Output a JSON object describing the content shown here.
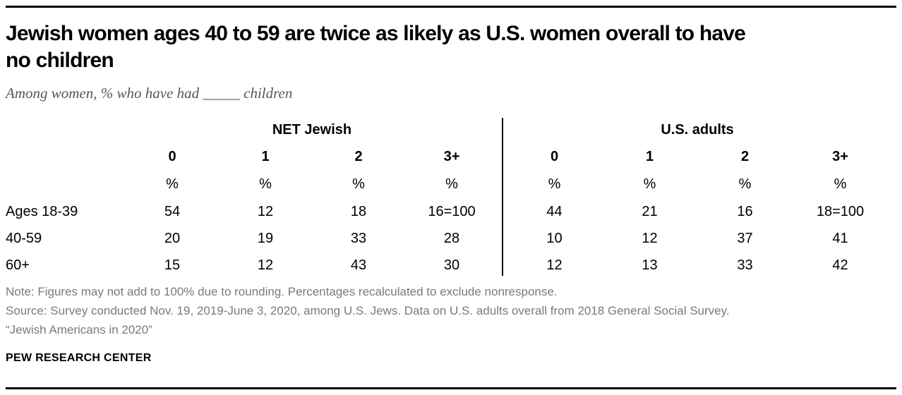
{
  "colors": {
    "title": "#000000",
    "subtitle": "#55565c",
    "notes": "#7a7a7a",
    "rule": "#000000",
    "divider": "#000000"
  },
  "header": {
    "title_line1": "Jewish women ages 40 to 59 are twice as likely as U.S. women overall to have",
    "title_line2": "no children",
    "subtitle": "Among women, % who have had _____ children"
  },
  "chart_data": {
    "type": "table",
    "title": "Jewish women ages 40 to 59 are twice as likely as U.S. women overall to have no children",
    "subtitle": "Among women, % who have had _____ children",
    "column_groups": [
      {
        "label": "NET Jewish",
        "columns": [
          "0",
          "1",
          "2",
          "3+"
        ]
      },
      {
        "label": "U.S. adults",
        "columns": [
          "0",
          "1",
          "2",
          "3+"
        ]
      }
    ],
    "unit": "%",
    "rows": [
      {
        "label": "Ages 18-39",
        "cells": [
          "54",
          "12",
          "18",
          "16=100",
          "44",
          "21",
          "16",
          "18=100"
        ]
      },
      {
        "label": "40-59",
        "cells": [
          "20",
          "19",
          "33",
          "28",
          "10",
          "12",
          "37",
          "41"
        ]
      },
      {
        "label": "60+",
        "cells": [
          "15",
          "12",
          "43",
          "30",
          "12",
          "13",
          "33",
          "42"
        ]
      }
    ],
    "layout": {
      "grid": false,
      "group_divider": "vertical line between NET Jewish and U.S. adults column groups"
    }
  },
  "footer": {
    "note": "Note: Figures may not add to 100% due to rounding. Percentages recalculated to exclude nonresponse.",
    "source": "Source: Survey conducted Nov. 19, 2019-June 3, 2020, among U.S. Jews. Data on U.S. adults overall from 2018 General Social Survey.",
    "report_title": "“Jewish Americans in 2020”",
    "brand": "PEW RESEARCH CENTER"
  }
}
